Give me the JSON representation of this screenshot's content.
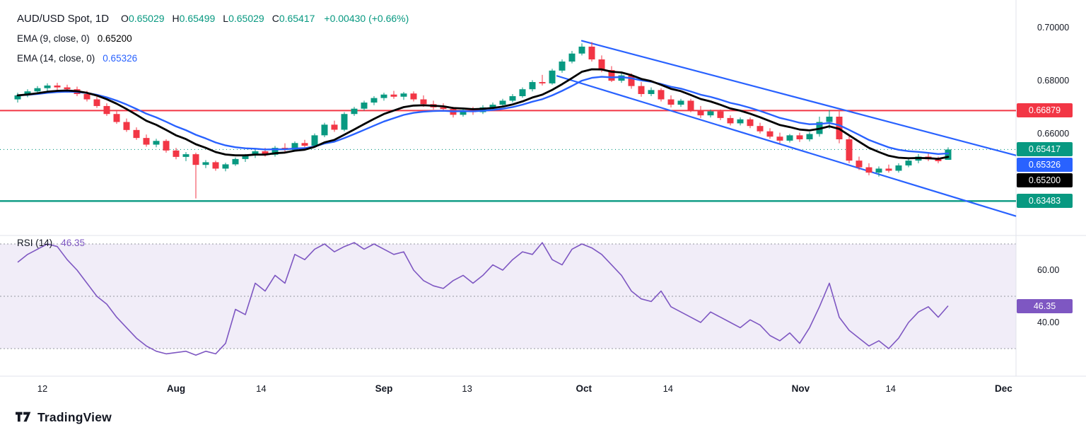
{
  "header": {
    "title": "AUD/USD Spot, 1D",
    "ohlc": {
      "o_label": "O",
      "o": "0.65029",
      "h_label": "H",
      "h": "0.65499",
      "l_label": "L",
      "l": "0.65029",
      "c_label": "C",
      "c": "0.65417",
      "change": "+0.00430 (+0.66%)"
    },
    "ema9": {
      "label": "EMA (9, close, 0)",
      "value": "0.65200"
    },
    "ema14": {
      "label": "EMA (14, close, 0)",
      "value": "0.65326"
    },
    "rsi": {
      "label": "RSI (14)",
      "value": "46.35"
    }
  },
  "footer": {
    "brand": "TradingView"
  },
  "colors": {
    "up": "#089981",
    "down": "#f23645",
    "ema9": "#000000",
    "ema14": "#2962ff",
    "channel": "#2962ff",
    "resistance": "#f23645",
    "support": "#089981",
    "last_price": "#089981",
    "rsi": "#7e57c2",
    "rsi_band": "rgba(126,87,194,0.11)",
    "band_border": "#9598a1",
    "separator": "#e0e3eb"
  },
  "chart_data": {
    "type": "candlestick",
    "title": "AUD/USD Spot",
    "interval": "1D",
    "ohlc_last": {
      "open": 0.65029,
      "high": 0.65499,
      "low": 0.65029,
      "close": 0.65417,
      "change": 0.0043,
      "change_pct": 0.66
    },
    "price_axis_ticks": [
      {
        "text": "0.70000",
        "price": 0.7
      },
      {
        "text": "0.68000",
        "price": 0.68
      },
      {
        "text": "0.66000",
        "price": 0.66
      }
    ],
    "price_badges": [
      {
        "text": "0.66879",
        "price": 0.66879,
        "color_key": "resistance"
      },
      {
        "text": "0.65417",
        "price": 0.65417,
        "color_key": "up"
      },
      {
        "text": "0.65326",
        "price": 0.65326,
        "color_key": "ema14"
      },
      {
        "text": "0.65200",
        "price": 0.652,
        "color_key": "ema9"
      },
      {
        "text": "0.63483",
        "price": 0.63483,
        "color_key": "support"
      }
    ],
    "levels": [
      {
        "price": 0.66879,
        "color_key": "resistance",
        "style": "solid",
        "width": 2
      },
      {
        "price": 0.63483,
        "color_key": "support",
        "style": "solid",
        "width": 2.4
      },
      {
        "price": 0.65417,
        "color_key": "last_price",
        "style": "dotted",
        "width": 1.2
      }
    ],
    "channel": [
      {
        "i1": 57.0,
        "p1": 0.695,
        "i2": 100.8,
        "p2": 0.652
      },
      {
        "i1": 54.5,
        "p1": 0.6818,
        "i2": 100.8,
        "p2": 0.6292
      }
    ],
    "time_ticks": [
      {
        "label": "12",
        "i": 2.5,
        "major": false
      },
      {
        "label": "Aug",
        "i": 16.0,
        "major": true
      },
      {
        "label": "14",
        "i": 24.6,
        "major": false
      },
      {
        "label": "Sep",
        "i": 37.0,
        "major": true
      },
      {
        "label": "13",
        "i": 45.4,
        "major": false
      },
      {
        "label": "Oct",
        "i": 57.2,
        "major": true
      },
      {
        "label": "14",
        "i": 65.7,
        "major": false
      },
      {
        "label": "Nov",
        "i": 79.1,
        "major": true
      },
      {
        "label": "14",
        "i": 88.2,
        "major": false
      },
      {
        "label": "Dec",
        "i": 99.6,
        "major": true
      }
    ],
    "emas": [
      {
        "period": 9,
        "last": 0.652,
        "color_key": "ema9",
        "width": 2.8
      },
      {
        "period": 14,
        "last": 0.65326,
        "color_key": "ema14",
        "width": 2.4
      }
    ],
    "candles": [
      [
        0.673,
        0.6755,
        0.6718,
        0.6745
      ],
      [
        0.6745,
        0.6768,
        0.6738,
        0.676
      ],
      [
        0.676,
        0.678,
        0.6748,
        0.6772
      ],
      [
        0.6772,
        0.679,
        0.676,
        0.6782
      ],
      [
        0.6782,
        0.6792,
        0.6765,
        0.6775
      ],
      [
        0.6775,
        0.6785,
        0.6755,
        0.6768
      ],
      [
        0.6768,
        0.6778,
        0.6742,
        0.675
      ],
      [
        0.675,
        0.6762,
        0.6722,
        0.673
      ],
      [
        0.673,
        0.674,
        0.6698,
        0.6705
      ],
      [
        0.6705,
        0.6715,
        0.6668,
        0.6675
      ],
      [
        0.6675,
        0.6685,
        0.6638,
        0.6645
      ],
      [
        0.6645,
        0.6658,
        0.6608,
        0.6615
      ],
      [
        0.6615,
        0.6625,
        0.6578,
        0.6585
      ],
      [
        0.6585,
        0.6598,
        0.6552,
        0.656
      ],
      [
        0.656,
        0.6582,
        0.655,
        0.6574
      ],
      [
        0.6574,
        0.658,
        0.653,
        0.6538
      ],
      [
        0.6538,
        0.6548,
        0.6505,
        0.6514
      ],
      [
        0.6514,
        0.6532,
        0.6498,
        0.6524
      ],
      [
        0.6524,
        0.653,
        0.6358,
        0.6484
      ],
      [
        0.6484,
        0.6502,
        0.6472,
        0.6494
      ],
      [
        0.6494,
        0.65,
        0.6462,
        0.647
      ],
      [
        0.647,
        0.6492,
        0.646,
        0.6486
      ],
      [
        0.6486,
        0.6512,
        0.648,
        0.6506
      ],
      [
        0.6506,
        0.6525,
        0.6495,
        0.652
      ],
      [
        0.652,
        0.6542,
        0.651,
        0.6535
      ],
      [
        0.6535,
        0.6548,
        0.6515,
        0.6522
      ],
      [
        0.6522,
        0.6555,
        0.6515,
        0.6548
      ],
      [
        0.6548,
        0.6565,
        0.6532,
        0.654
      ],
      [
        0.654,
        0.6572,
        0.6535,
        0.6566
      ],
      [
        0.6566,
        0.6578,
        0.6548,
        0.6556
      ],
      [
        0.6556,
        0.6602,
        0.655,
        0.6595
      ],
      [
        0.6595,
        0.6642,
        0.6588,
        0.6635
      ],
      [
        0.6635,
        0.665,
        0.6608,
        0.6616
      ],
      [
        0.6616,
        0.6682,
        0.661,
        0.6675
      ],
      [
        0.6675,
        0.6702,
        0.6668,
        0.6695
      ],
      [
        0.6695,
        0.6725,
        0.6688,
        0.6718
      ],
      [
        0.6718,
        0.6742,
        0.6708,
        0.6735
      ],
      [
        0.6735,
        0.6755,
        0.6725,
        0.6748
      ],
      [
        0.6748,
        0.6762,
        0.6732,
        0.674
      ],
      [
        0.674,
        0.6758,
        0.6728,
        0.6752
      ],
      [
        0.6752,
        0.676,
        0.6722,
        0.673
      ],
      [
        0.673,
        0.6745,
        0.6702,
        0.6712
      ],
      [
        0.6712,
        0.6725,
        0.6692,
        0.67
      ],
      [
        0.67,
        0.6715,
        0.6684,
        0.6694
      ],
      [
        0.6694,
        0.6702,
        0.6662,
        0.6672
      ],
      [
        0.6672,
        0.6696,
        0.6665,
        0.669
      ],
      [
        0.669,
        0.6702,
        0.6672,
        0.6682
      ],
      [
        0.6682,
        0.6708,
        0.6675,
        0.67
      ],
      [
        0.67,
        0.6718,
        0.669,
        0.671
      ],
      [
        0.671,
        0.6732,
        0.6702,
        0.6725
      ],
      [
        0.6725,
        0.675,
        0.6718,
        0.6742
      ],
      [
        0.6742,
        0.6775,
        0.6736,
        0.6768
      ],
      [
        0.6768,
        0.6802,
        0.676,
        0.6795
      ],
      [
        0.6795,
        0.6822,
        0.6782,
        0.679
      ],
      [
        0.679,
        0.6845,
        0.6785,
        0.6838
      ],
      [
        0.6838,
        0.688,
        0.683,
        0.6872
      ],
      [
        0.6872,
        0.6912,
        0.6865,
        0.6902
      ],
      [
        0.6902,
        0.694,
        0.6895,
        0.6928
      ],
      [
        0.6928,
        0.6945,
        0.6872,
        0.688
      ],
      [
        0.688,
        0.6895,
        0.6832,
        0.684
      ],
      [
        0.684,
        0.6855,
        0.6795,
        0.68
      ],
      [
        0.68,
        0.683,
        0.6792,
        0.682
      ],
      [
        0.682,
        0.6828,
        0.677,
        0.678
      ],
      [
        0.678,
        0.6795,
        0.674,
        0.675
      ],
      [
        0.675,
        0.6775,
        0.6742,
        0.6765
      ],
      [
        0.6765,
        0.6772,
        0.6722,
        0.673
      ],
      [
        0.673,
        0.6745,
        0.67,
        0.671
      ],
      [
        0.671,
        0.6732,
        0.6702,
        0.6725
      ],
      [
        0.6725,
        0.6732,
        0.6682,
        0.669
      ],
      [
        0.669,
        0.6705,
        0.666,
        0.667
      ],
      [
        0.667,
        0.6692,
        0.6662,
        0.6685
      ],
      [
        0.6685,
        0.6692,
        0.6652,
        0.666
      ],
      [
        0.666,
        0.667,
        0.6632,
        0.664
      ],
      [
        0.664,
        0.6662,
        0.6632,
        0.6655
      ],
      [
        0.6655,
        0.6662,
        0.6622,
        0.663
      ],
      [
        0.663,
        0.6642,
        0.6602,
        0.661
      ],
      [
        0.661,
        0.6622,
        0.6582,
        0.659
      ],
      [
        0.659,
        0.6605,
        0.6565,
        0.6575
      ],
      [
        0.6575,
        0.66,
        0.6568,
        0.6595
      ],
      [
        0.6595,
        0.6605,
        0.657,
        0.658
      ],
      [
        0.658,
        0.6608,
        0.6572,
        0.66
      ],
      [
        0.66,
        0.6665,
        0.659,
        0.6645
      ],
      [
        0.6645,
        0.669,
        0.662,
        0.6665
      ],
      [
        0.6665,
        0.6685,
        0.6565,
        0.658
      ],
      [
        0.658,
        0.6595,
        0.649,
        0.65
      ],
      [
        0.65,
        0.6515,
        0.6465,
        0.6475
      ],
      [
        0.6475,
        0.649,
        0.6445,
        0.6455
      ],
      [
        0.6455,
        0.6478,
        0.644,
        0.647
      ],
      [
        0.647,
        0.6485,
        0.6455,
        0.6462
      ],
      [
        0.6462,
        0.649,
        0.6455,
        0.6482
      ],
      [
        0.6482,
        0.651,
        0.6475,
        0.65
      ],
      [
        0.65,
        0.6525,
        0.649,
        0.6515
      ],
      [
        0.6515,
        0.6528,
        0.6498,
        0.6505
      ],
      [
        0.6505,
        0.6515,
        0.649,
        0.6498
      ],
      [
        0.65029,
        0.65499,
        0.65029,
        0.65417
      ]
    ],
    "rsi": {
      "period": 14,
      "current": 46.35,
      "upper_band": 70,
      "middle": 50,
      "lower_band": 30,
      "ticks": [
        {
          "text": "60.00",
          "value": 60
        },
        {
          "text": "40.00",
          "value": 40
        }
      ],
      "badge": {
        "text": "46.35",
        "value": 46.35
      },
      "values": [
        63,
        66,
        68,
        70,
        69,
        64,
        60,
        55,
        50,
        47,
        42,
        38,
        34,
        31,
        29,
        28,
        28.5,
        29,
        27.5,
        29,
        28,
        32,
        45,
        43,
        55,
        52,
        58,
        55,
        66,
        64,
        68,
        70,
        67,
        69,
        70.5,
        68,
        70,
        68,
        66,
        67,
        60,
        56,
        54,
        53,
        56,
        58,
        55,
        58,
        62,
        60,
        64,
        67,
        66,
        70.5,
        64,
        62,
        68,
        70,
        68.5,
        66,
        62,
        58,
        52,
        49,
        48,
        52,
        46,
        44,
        42,
        40,
        44,
        42,
        40,
        38,
        41,
        39,
        35,
        33,
        36,
        32,
        38,
        46,
        55,
        42,
        37,
        34,
        31,
        33,
        30,
        34,
        40,
        44,
        46,
        42,
        46.35
      ]
    }
  }
}
